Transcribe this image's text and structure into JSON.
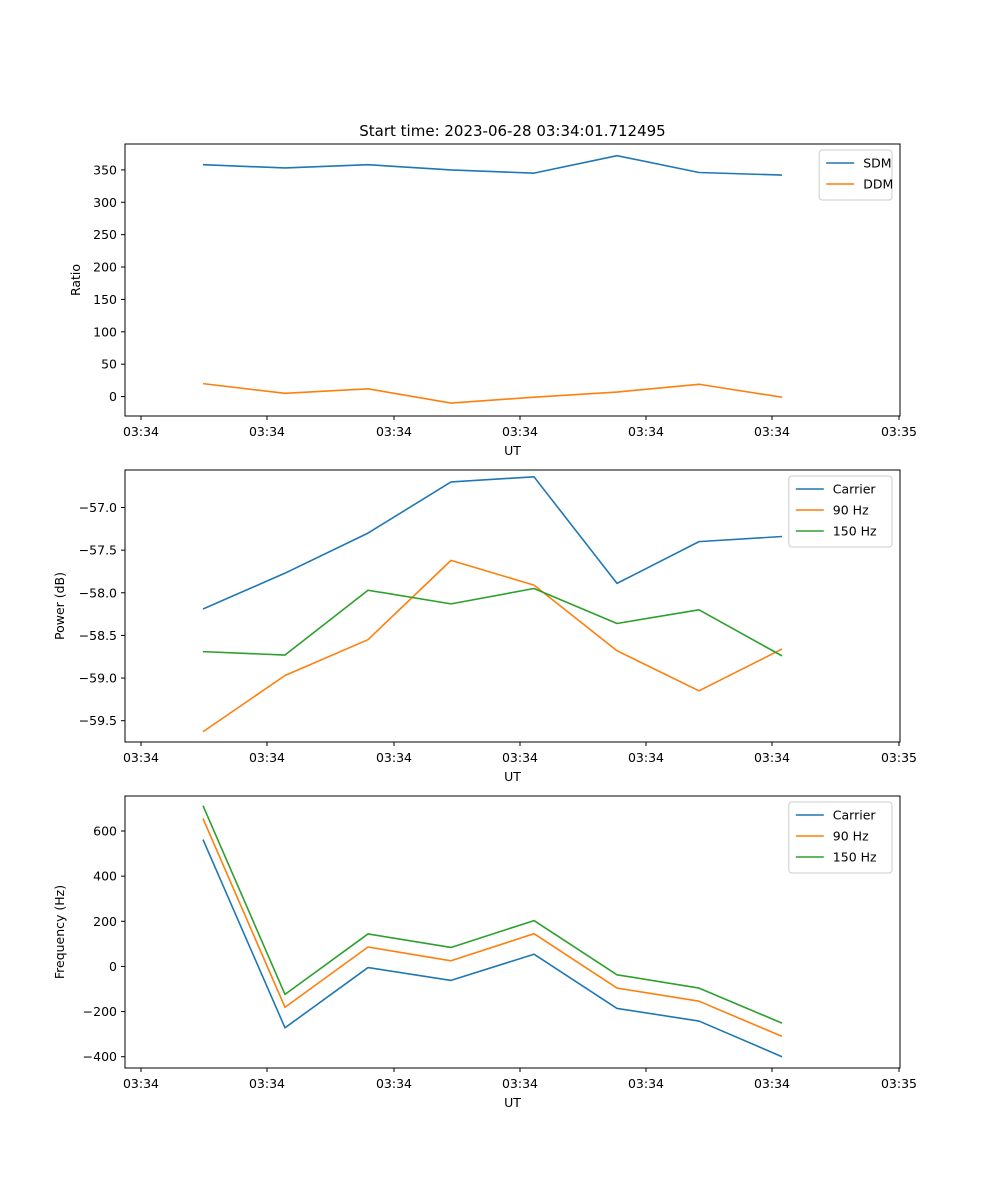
{
  "figure_title": "Start time: 2023-06-28 03:34:01.712495",
  "colors": {
    "blue": "#1f77b4",
    "orange": "#ff7f0e",
    "green": "#2ca02c"
  },
  "chart_data": [
    {
      "type": "line",
      "title": "Start time: 2023-06-28 03:34:01.712495",
      "xlabel": "UT",
      "ylabel": "Ratio",
      "xtick_labels": [
        "03:34",
        "03:34",
        "03:34",
        "03:34",
        "03:34",
        "03:34",
        "03:34"
      ],
      "xtick_last_label": "03:35",
      "yticks": [
        0,
        50,
        100,
        150,
        200,
        250,
        300,
        350
      ],
      "yticks_labels": [
        "0",
        "50",
        "100",
        "150",
        "200",
        "250",
        "300",
        "350"
      ],
      "ylim": [
        -30,
        390
      ],
      "legend_position": "upper right",
      "series": [
        {
          "name": "SDM",
          "color": "#1f77b4",
          "values": [
            358,
            353,
            358,
            350,
            345,
            372,
            346,
            342
          ]
        },
        {
          "name": "DDM",
          "color": "#ff7f0e",
          "values": [
            20,
            5,
            12,
            -10,
            -1,
            7,
            19,
            -1
          ]
        }
      ]
    },
    {
      "type": "line",
      "xlabel": "UT",
      "ylabel": "Power (dB)",
      "xtick_labels": [
        "03:34",
        "03:34",
        "03:34",
        "03:34",
        "03:34",
        "03:34",
        "03:34"
      ],
      "xtick_last_label": "03:35",
      "yticks": [
        -59.5,
        -59.0,
        -58.5,
        -58.0,
        -57.5,
        -57.0
      ],
      "yticks_labels": [
        "−59.5",
        "−59.0",
        "−58.5",
        "−58.0",
        "−57.5",
        "−57.0"
      ],
      "ylim": [
        -59.75,
        -56.56
      ],
      "legend_position": "upper right",
      "series": [
        {
          "name": "Carrier",
          "color": "#1f77b4",
          "values": [
            -58.19,
            -57.77,
            -57.3,
            -56.7,
            -56.64,
            -57.89,
            -57.4,
            -57.34
          ]
        },
        {
          "name": "90 Hz",
          "color": "#ff7f0e",
          "values": [
            -59.63,
            -58.97,
            -58.55,
            -57.62,
            -57.91,
            -58.68,
            -59.15,
            -58.66
          ]
        },
        {
          "name": "150 Hz",
          "color": "#2ca02c",
          "values": [
            -58.69,
            -58.73,
            -57.97,
            -58.13,
            -57.95,
            -58.36,
            -58.2,
            -58.74
          ]
        }
      ]
    },
    {
      "type": "line",
      "xlabel": "UT",
      "ylabel": "Frequency (Hz)",
      "xtick_labels": [
        "03:34",
        "03:34",
        "03:34",
        "03:34",
        "03:34",
        "03:34",
        "03:34"
      ],
      "xtick_last_label": "03:35",
      "yticks": [
        -400,
        -200,
        0,
        200,
        400,
        600
      ],
      "yticks_labels": [
        "−400",
        "−200",
        "0",
        "200",
        "400",
        "600"
      ],
      "ylim": [
        -450,
        755
      ],
      "legend_position": "upper right",
      "series": [
        {
          "name": "Carrier",
          "color": "#1f77b4",
          "values": [
            562,
            -272,
            -5,
            -62,
            54,
            -186,
            -242,
            -400
          ]
        },
        {
          "name": "90 Hz",
          "color": "#ff7f0e",
          "values": [
            655,
            -181,
            86,
            25,
            145,
            -96,
            -154,
            -310
          ]
        },
        {
          "name": "150 Hz",
          "color": "#2ca02c",
          "values": [
            712,
            -124,
            144,
            84,
            203,
            -37,
            -96,
            -251
          ]
        }
      ]
    }
  ]
}
